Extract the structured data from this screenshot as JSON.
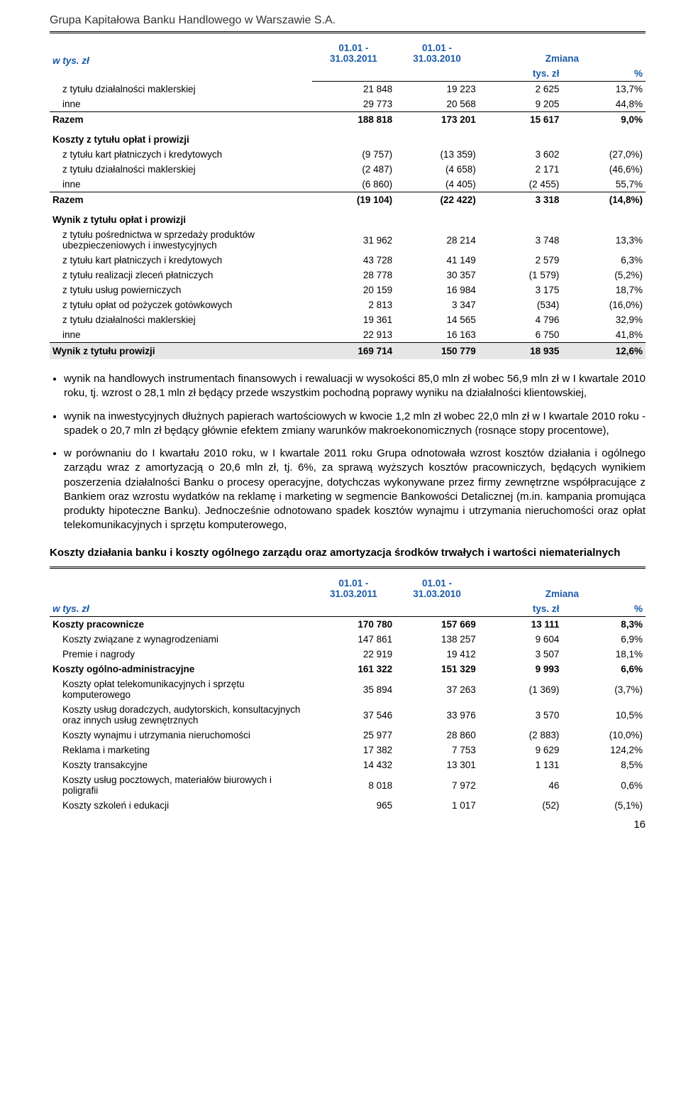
{
  "header": {
    "title": "Grupa Kapitałowa Banku Handlowego w Warszawie S.A."
  },
  "table1": {
    "col_periods": [
      "01.01 -\n31.03.2011",
      "01.01 -\n31.03.2010"
    ],
    "zmiana": "Zmiana",
    "row_unit": "w tys. zł",
    "sub_units": [
      "tys. zł",
      "%"
    ],
    "rows_a": [
      {
        "label": "z tytułu działalności maklerskiej",
        "v": [
          "21 848",
          "19 223",
          "2 625",
          "13,7%"
        ]
      },
      {
        "label": "inne",
        "v": [
          "29 773",
          "20 568",
          "9 205",
          "44,8%"
        ]
      }
    ],
    "razem_a": {
      "label": "Razem",
      "v": [
        "188 818",
        "173 201",
        "15 617",
        "9,0%"
      ]
    },
    "section_kz": "Koszty z tytułu opłat i prowizji",
    "rows_b": [
      {
        "label": "z tytułu kart płatniczych i kredytowych",
        "v": [
          "(9 757)",
          "(13 359)",
          "3 602",
          "(27,0%)"
        ]
      },
      {
        "label": "z tytułu działalności maklerskiej",
        "v": [
          "(2 487)",
          "(4 658)",
          "2 171",
          "(46,6%)"
        ]
      },
      {
        "label": "inne",
        "v": [
          "(6 860)",
          "(4 405)",
          "(2 455)",
          "55,7%"
        ]
      }
    ],
    "razem_b": {
      "label": "Razem",
      "v": [
        "(19 104)",
        "(22 422)",
        "3 318",
        "(14,8%)"
      ]
    },
    "section_wz": "Wynik z tytułu opłat i prowizji",
    "rows_c": [
      {
        "label": "z tytułu pośrednictwa w sprzedaży produktów ubezpieczeniowych i inwestycyjnych",
        "v": [
          "31 962",
          "28 214",
          "3 748",
          "13,3%"
        ]
      },
      {
        "label": "z tytułu kart płatniczych i kredytowych",
        "v": [
          "43 728",
          "41 149",
          "2 579",
          "6,3%"
        ]
      },
      {
        "label": "z tytułu realizacji zleceń płatniczych",
        "v": [
          "28 778",
          "30 357",
          "(1 579)",
          "(5,2%)"
        ]
      },
      {
        "label": "z tytułu usług powierniczych",
        "v": [
          "20 159",
          "16 984",
          "3 175",
          "18,7%"
        ]
      },
      {
        "label": "z tytułu opłat od pożyczek gotówkowych",
        "v": [
          "2 813",
          "3 347",
          "(534)",
          "(16,0%)"
        ]
      },
      {
        "label": "z tytułu działalności maklerskiej",
        "v": [
          "19 361",
          "14 565",
          "4 796",
          "32,9%"
        ]
      },
      {
        "label": "inne",
        "v": [
          "22 913",
          "16 163",
          "6 750",
          "41,8%"
        ]
      }
    ],
    "wynik_total": {
      "label": "Wynik z tytułu prowizji",
      "v": [
        "169 714",
        "150 779",
        "18 935",
        "12,6%"
      ]
    }
  },
  "bullets": [
    "wynik na handlowych instrumentach finansowych i rewaluacji w wysokości 85,0 mln zł wobec 56,9 mln zł w I kwartale 2010 roku, tj. wzrost o 28,1 mln zł będący przede wszystkim pochodną poprawy wyniku na działalności klientowskiej,",
    "wynik na inwestycyjnych dłużnych papierach wartościowych w kwocie 1,2 mln zł wobec 22,0 mln zł w I kwartale 2010 roku - spadek o 20,7 mln zł będący głównie efektem zmiany warunków makroekonomicznych (rosnące stopy procentowe),",
    "w porównaniu do I kwartału 2010 roku, w I kwartale 2011 roku Grupa odnotowała wzrost kosztów działania i ogólnego zarządu wraz z amortyzacją o 20,6 mln zł, tj. 6%, za sprawą wyższych kosztów pracowniczych, będących wynikiem poszerzenia działalności Banku o procesy operacyjne, dotychczas wykonywane przez firmy zewnętrzne współpracujące z Bankiem oraz wzrostu wydatków na reklamę i marketing w segmencie Bankowości Detalicznej (m.in. kampania promująca produkty hipoteczne Banku). Jednocześnie odnotowano spadek kosztów wynajmu i utrzymania nieruchomości oraz opłat telekomunikacyjnych i sprzętu komputerowego,"
  ],
  "para_bold": "Koszty działania banku i koszty ogólnego zarządu oraz amortyzacja środków trwałych i wartości niematerialnych",
  "table2": {
    "col_periods": [
      "01.01 -\n31.03.2011",
      "01.01 -\n31.03.2010"
    ],
    "zmiana": "Zmiana",
    "row_unit": "w tys. zł",
    "sub_units": [
      "tys. zł",
      "%"
    ],
    "rows": [
      {
        "label": "Koszty pracownicze",
        "bold": true,
        "indent": false,
        "v": [
          "170 780",
          "157 669",
          "13 111",
          "8,3%"
        ]
      },
      {
        "label": "Koszty związane z wynagrodzeniami",
        "bold": false,
        "indent": true,
        "v": [
          "147 861",
          "138 257",
          "9 604",
          "6,9%"
        ]
      },
      {
        "label": "Premie i nagrody",
        "bold": false,
        "indent": true,
        "v": [
          "22 919",
          "19 412",
          "3 507",
          "18,1%"
        ]
      },
      {
        "label": "Koszty ogólno-administracyjne",
        "bold": true,
        "indent": false,
        "v": [
          "161 322",
          "151 329",
          "9 993",
          "6,6%"
        ]
      },
      {
        "label": "Koszty opłat telekomunikacyjnych i sprzętu komputerowego",
        "bold": false,
        "indent": true,
        "v": [
          "35 894",
          "37 263",
          "(1 369)",
          "(3,7%)"
        ]
      },
      {
        "label": "Koszty usług doradczych, audytorskich, konsultacyjnych oraz innych usług zewnętrznych",
        "bold": false,
        "indent": true,
        "v": [
          "37 546",
          "33 976",
          "3 570",
          "10,5%"
        ]
      },
      {
        "label": "Koszty wynajmu i utrzymania nieruchomości",
        "bold": false,
        "indent": true,
        "v": [
          "25 977",
          "28 860",
          "(2 883)",
          "(10,0%)"
        ]
      },
      {
        "label": "Reklama i marketing",
        "bold": false,
        "indent": true,
        "v": [
          "17 382",
          "7 753",
          "9 629",
          "124,2%"
        ]
      },
      {
        "label": "Koszty transakcyjne",
        "bold": false,
        "indent": true,
        "v": [
          "14 432",
          "13 301",
          "1 131",
          "8,5%"
        ]
      },
      {
        "label": "Koszty usług pocztowych, materiałów biurowych i poligrafii",
        "bold": false,
        "indent": true,
        "v": [
          "8 018",
          "7 972",
          "46",
          "0,6%"
        ]
      },
      {
        "label": "Koszty szkoleń i edukacji",
        "bold": false,
        "indent": true,
        "v": [
          "965",
          "1 017",
          "(52)",
          "(5,1%)"
        ]
      }
    ]
  },
  "page_num": "16"
}
